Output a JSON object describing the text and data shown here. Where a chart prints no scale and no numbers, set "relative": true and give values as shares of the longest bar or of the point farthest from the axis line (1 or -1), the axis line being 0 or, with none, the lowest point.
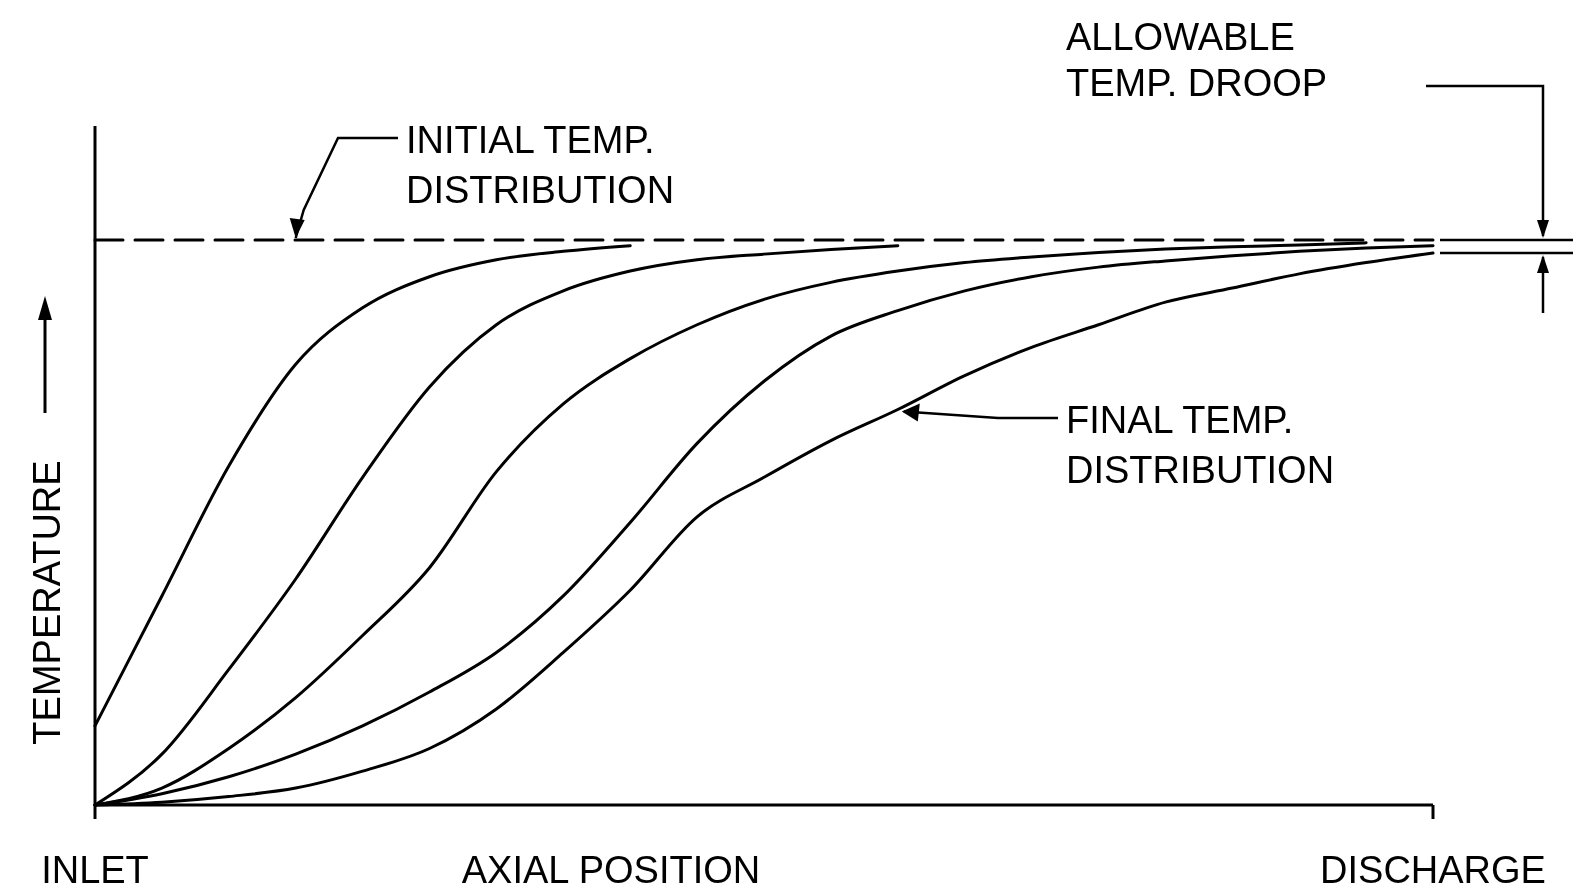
{
  "chart_data": {
    "type": "line",
    "relative": true,
    "xlabel": "AXIAL POSITION",
    "ylabel": "TEMPERATURE",
    "categories": [
      "INLET",
      null,
      null,
      null,
      null,
      null,
      null,
      null,
      null,
      null,
      null,
      null,
      null,
      null,
      null,
      null,
      null,
      null,
      null,
      null,
      "DISCHARGE"
    ],
    "grid": false,
    "marker": "none",
    "line_style": "solid",
    "series": [
      {
        "color": "#000000",
        "line_style": "dashed",
        "values": [
          1,
          1,
          1,
          1,
          1,
          1,
          1,
          1,
          1,
          1,
          1,
          1,
          1,
          1,
          1,
          1,
          1,
          1,
          1,
          1,
          1
        ]
      },
      {
        "color": "#000000",
        "values": [
          0.14,
          0.37,
          0.6,
          0.78,
          0.88,
          0.935,
          0.965,
          0.98,
          0.99,
          null,
          null,
          null,
          null,
          null,
          null,
          null,
          null,
          null,
          null,
          null,
          null
        ]
      },
      {
        "color": "#000000",
        "values": [
          0,
          0.09,
          0.24,
          0.4,
          0.58,
          0.74,
          0.85,
          0.91,
          0.945,
          0.965,
          0.975,
          0.983,
          0.99,
          null,
          null,
          null,
          null,
          null,
          null,
          null,
          null
        ]
      },
      {
        "color": "#000000",
        "values": [
          0,
          0.03,
          0.1,
          0.19,
          0.3,
          0.42,
          0.59,
          0.71,
          0.79,
          0.85,
          0.895,
          0.925,
          0.945,
          0.96,
          0.97,
          0.978,
          0.984,
          0.988,
          0.991,
          0.995,
          null
        ]
      },
      {
        "color": "#000000",
        "values": [
          0,
          0.02,
          0.05,
          0.09,
          0.14,
          0.2,
          0.27,
          0.37,
          0.5,
          0.64,
          0.75,
          0.83,
          0.875,
          0.91,
          0.935,
          0.952,
          0.963,
          0.972,
          0.98,
          0.986,
          0.99
        ]
      },
      {
        "color": "#000000",
        "values": [
          0,
          0.005,
          0.015,
          0.03,
          0.06,
          0.1,
          0.17,
          0.27,
          0.38,
          0.51,
          0.58,
          0.645,
          0.7,
          0.76,
          0.81,
          0.85,
          0.89,
          0.915,
          0.94,
          0.96,
          0.977
        ]
      }
    ],
    "annotations": [
      "INITIAL TEMP.\nDISTRIBUTION",
      "FINAL TEMP.\nDISTRIBUTION",
      "ALLOWABLE\nTEMP. DROOP"
    ]
  }
}
